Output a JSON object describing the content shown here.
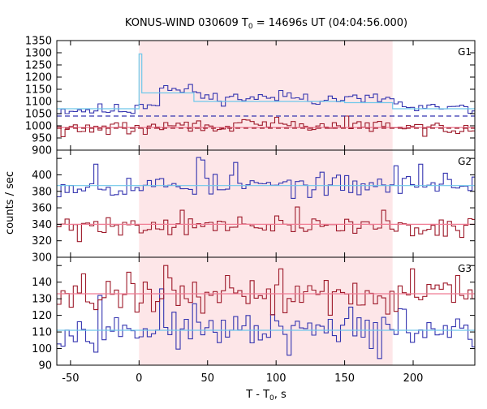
{
  "chart_data": {
    "type": "line",
    "title_prefix": "KONUS-WIND 030609 T",
    "title_sub": "0",
    "title_suffix": " = 14696s UT (04:04:56.000)",
    "xlabel_prefix": "T - T",
    "xlabel_sub": "0",
    "xlabel_suffix": ", s",
    "ylabel": "counts / sec",
    "xlim": [
      -60,
      245
    ],
    "xticks": [
      -50,
      0,
      50,
      100,
      150,
      200
    ],
    "grid": false,
    "highlight_interval": [
      0,
      185
    ],
    "colors": {
      "highlight": "#fde6e8",
      "blue": "#3535b0",
      "red": "#9e1a2a",
      "cyan": "#6fc8ea",
      "pink": "#f07c94"
    },
    "panels": [
      {
        "label": "G1",
        "ylim": [
          900,
          1350
        ],
        "yticks": [
          900,
          950,
          1000,
          1050,
          1100,
          1150,
          1200,
          1250,
          1300,
          1350
        ],
        "series": [
          {
            "color": "blue",
            "base": 1065,
            "amp": 25,
            "seed": 11,
            "segments": [
              [
                -5,
                1080
              ],
              [
                0,
                1090
              ],
              [
                20,
                1145
              ],
              [
                45,
                1115
              ],
              [
                100,
                1110
              ],
              [
                185,
                1095
              ],
              [
                190,
                1070
              ]
            ],
            "spikes": [
              [
                15,
                1155
              ],
              [
                18,
                1165
              ],
              [
                102,
                1145
              ],
              [
                108,
                1135
              ],
              [
                120,
                1130
              ]
            ]
          },
          {
            "color": "red",
            "base": 990,
            "amp": 25,
            "seed": 29,
            "segments": [
              [
                0,
                1000
              ],
              [
                185,
                990
              ]
            ],
            "spikes": [
              [
                -55,
                955
              ],
              [
                100,
                1035
              ],
              [
                150,
                1040
              ],
              [
                5,
                965
              ]
            ]
          },
          {
            "color": "cyan",
            "points": [
              [
                -60,
                1070
              ],
              [
                0,
                1070
              ],
              [
                0,
                1295
              ],
              [
                2,
                1295
              ],
              [
                2,
                1135
              ],
              [
                40,
                1135
              ],
              [
                40,
                1100
              ],
              [
                150,
                1100
              ],
              [
                150,
                1095
              ],
              [
                185,
                1095
              ],
              [
                185,
                1070
              ],
              [
                245,
                1070
              ]
            ]
          },
          {
            "color": "pink",
            "points": [
              [
                -60,
                993
              ],
              [
                245,
                993
              ]
            ]
          }
        ],
        "dashed": [
          {
            "color": "blue",
            "value": 1040
          },
          {
            "color": "red",
            "value": 990
          }
        ]
      },
      {
        "label": "G2",
        "ylim": [
          300,
          430
        ],
        "yticks": [
          300,
          320,
          340,
          360,
          380,
          400,
          420
        ],
        "series": [
          {
            "color": "blue",
            "base": 387,
            "amp": 13,
            "seed": 53,
            "segments": [],
            "spikes": [
              [
                -33,
                413
              ],
              [
                42,
                421
              ],
              [
                45,
                418
              ],
              [
                71,
                415
              ],
              [
                188,
                411
              ],
              [
                205,
                413
              ],
              [
                223,
                402
              ]
            ]
          },
          {
            "color": "red",
            "base": 338,
            "amp": 11,
            "seed": 71,
            "segments": [],
            "spikes": [
              [
                -45,
                319
              ],
              [
                -22,
                348
              ],
              [
                32,
                357
              ],
              [
                116,
                361
              ],
              [
                179,
                357
              ],
              [
                200,
                326
              ],
              [
                235,
                324
              ]
            ]
          },
          {
            "color": "cyan",
            "points": [
              [
                -60,
                387
              ],
              [
                245,
                387
              ]
            ]
          },
          {
            "color": "pink",
            "points": [
              [
                -60,
                340
              ],
              [
                245,
                340
              ]
            ]
          }
        ],
        "dashed": []
      },
      {
        "label": "G3",
        "ylim": [
          90,
          155
        ],
        "yticks": [
          90,
          100,
          110,
          120,
          130,
          140,
          150
        ],
        "series": [
          {
            "color": "blue",
            "base": 111,
            "amp": 9,
            "seed": 97,
            "segments": [],
            "spikes": [
              [
                -30,
                132
              ],
              [
                15,
                136
              ],
              [
                40,
                127
              ],
              [
                110,
                96
              ],
              [
                155,
                125
              ],
              [
                175,
                94
              ],
              [
                190,
                124
              ],
              [
                243,
                101
              ]
            ]
          },
          {
            "color": "red",
            "base": 132,
            "amp": 10,
            "seed": 131,
            "segments": [],
            "spikes": [
              [
                -40,
                145
              ],
              [
                -8,
                146
              ],
              [
                18,
                150
              ],
              [
                65,
                144
              ],
              [
                103,
                148
              ],
              [
                135,
                141
              ],
              [
                200,
                148
              ],
              [
                232,
                144
              ]
            ]
          },
          {
            "color": "cyan",
            "points": [
              [
                -60,
                111
              ],
              [
                245,
                111
              ]
            ]
          },
          {
            "color": "pink",
            "points": [
              [
                -60,
                133
              ],
              [
                245,
                133
              ]
            ]
          }
        ],
        "dashed": []
      }
    ]
  }
}
